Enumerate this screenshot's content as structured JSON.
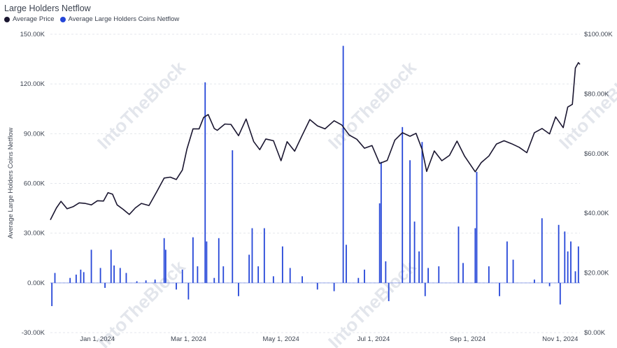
{
  "chart_data": {
    "type": "bar",
    "title": "Large Holders Netflow",
    "ylabel": "Average Large Holders Coins Netflow",
    "ylim": [
      -30000,
      150000
    ],
    "y2lim": [
      0,
      100000
    ],
    "yticks": [
      150000,
      120000,
      90000,
      60000,
      30000,
      0,
      -30000
    ],
    "yticks_labels": [
      "150.00K",
      "120.00K",
      "90.00K",
      "60.00K",
      "30.00K",
      "0.00K",
      "-30.00K"
    ],
    "y2ticks": [
      100000,
      80000,
      60000,
      40000,
      20000,
      0
    ],
    "y2ticks_labels": [
      "$100.00K",
      "$80.00K",
      "$60.00K",
      "$40.00K",
      "$20.00K",
      "$0.00K"
    ],
    "x_domain": [
      "2023-12-01",
      "2024-11-14"
    ],
    "xticks": [
      {
        "date": "2024-01-01",
        "label": "Jan 1, 2024"
      },
      {
        "date": "2024-03-01",
        "label": "Mar 1, 2024"
      },
      {
        "date": "2024-05-01",
        "label": "May 1, 2024"
      },
      {
        "date": "2024-07-01",
        "label": "Jul 1, 2024"
      },
      {
        "date": "2024-09-01",
        "label": "Sep 1, 2024"
      },
      {
        "date": "2024-11-01",
        "label": "Nov 1, 2024"
      }
    ],
    "grid": true,
    "legend_position": "top-left",
    "watermark": "IntoTheBlock",
    "series": [
      {
        "name": "Average Price",
        "type": "line",
        "axis": "right",
        "color": "#1a1630",
        "points": [
          [
            "2023-12-01",
            37800
          ],
          [
            "2023-12-05",
            41800
          ],
          [
            "2023-12-08",
            44000
          ],
          [
            "2023-12-12",
            41500
          ],
          [
            "2023-12-16",
            42200
          ],
          [
            "2023-12-20",
            43500
          ],
          [
            "2023-12-24",
            43300
          ],
          [
            "2023-12-28",
            42800
          ],
          [
            "2024-01-01",
            44200
          ],
          [
            "2024-01-05",
            44100
          ],
          [
            "2024-01-08",
            46900
          ],
          [
            "2024-01-11",
            46400
          ],
          [
            "2024-01-14",
            42800
          ],
          [
            "2024-01-18",
            41300
          ],
          [
            "2024-01-22",
            39600
          ],
          [
            "2024-01-26",
            41800
          ],
          [
            "2024-01-30",
            43300
          ],
          [
            "2024-02-04",
            42600
          ],
          [
            "2024-02-09",
            47100
          ],
          [
            "2024-02-14",
            51800
          ],
          [
            "2024-02-18",
            52100
          ],
          [
            "2024-02-22",
            51300
          ],
          [
            "2024-02-26",
            54500
          ],
          [
            "2024-02-29",
            61500
          ],
          [
            "2024-03-04",
            68300
          ],
          [
            "2024-03-08",
            68300
          ],
          [
            "2024-03-11",
            72100
          ],
          [
            "2024-03-14",
            73100
          ],
          [
            "2024-03-18",
            68400
          ],
          [
            "2024-03-20",
            67800
          ],
          [
            "2024-03-25",
            69900
          ],
          [
            "2024-03-29",
            69800
          ],
          [
            "2024-04-03",
            66000
          ],
          [
            "2024-04-08",
            71600
          ],
          [
            "2024-04-13",
            64000
          ],
          [
            "2024-04-17",
            61300
          ],
          [
            "2024-04-21",
            64900
          ],
          [
            "2024-04-26",
            64300
          ],
          [
            "2024-05-01",
            57600
          ],
          [
            "2024-05-05",
            64000
          ],
          [
            "2024-05-10",
            60800
          ],
          [
            "2024-05-15",
            66200
          ],
          [
            "2024-05-20",
            71400
          ],
          [
            "2024-05-25",
            69300
          ],
          [
            "2024-05-30",
            68300
          ],
          [
            "2024-06-05",
            71000
          ],
          [
            "2024-06-10",
            69600
          ],
          [
            "2024-06-15",
            66200
          ],
          [
            "2024-06-20",
            64800
          ],
          [
            "2024-06-25",
            61800
          ],
          [
            "2024-06-30",
            62700
          ],
          [
            "2024-07-05",
            56700
          ],
          [
            "2024-07-10",
            57700
          ],
          [
            "2024-07-15",
            64500
          ],
          [
            "2024-07-20",
            67000
          ],
          [
            "2024-07-25",
            65800
          ],
          [
            "2024-07-29",
            66800
          ],
          [
            "2024-08-02",
            61400
          ],
          [
            "2024-08-05",
            54000
          ],
          [
            "2024-08-10",
            60900
          ],
          [
            "2024-08-15",
            57600
          ],
          [
            "2024-08-20",
            59400
          ],
          [
            "2024-08-25",
            64200
          ],
          [
            "2024-08-30",
            59100
          ],
          [
            "2024-09-06",
            53900
          ],
          [
            "2024-09-10",
            57000
          ],
          [
            "2024-09-15",
            59200
          ],
          [
            "2024-09-20",
            63200
          ],
          [
            "2024-09-25",
            64300
          ],
          [
            "2024-09-30",
            63300
          ],
          [
            "2024-10-05",
            62100
          ],
          [
            "2024-10-10",
            60300
          ],
          [
            "2024-10-15",
            67000
          ],
          [
            "2024-10-20",
            68400
          ],
          [
            "2024-10-25",
            66600
          ],
          [
            "2024-10-29",
            72300
          ],
          [
            "2024-11-03",
            68700
          ],
          [
            "2024-11-06",
            75600
          ],
          [
            "2024-11-09",
            76500
          ],
          [
            "2024-11-11",
            88700
          ],
          [
            "2024-11-13",
            90500
          ],
          [
            "2024-11-14",
            89900
          ]
        ]
      },
      {
        "name": "Average Large Holders Coins Netflow",
        "type": "bar",
        "axis": "left",
        "color": "#2546d8",
        "points": [
          [
            "2023-12-02",
            -14000
          ],
          [
            "2023-12-04",
            6000
          ],
          [
            "2023-12-14",
            3000
          ],
          [
            "2023-12-18",
            5000
          ],
          [
            "2023-12-21",
            8000
          ],
          [
            "2023-12-23",
            6500
          ],
          [
            "2023-12-28",
            20000
          ],
          [
            "2024-01-03",
            9000
          ],
          [
            "2024-01-06",
            -3000
          ],
          [
            "2024-01-10",
            20000
          ],
          [
            "2024-01-12",
            10500
          ],
          [
            "2024-01-16",
            9000
          ],
          [
            "2024-01-20",
            6000
          ],
          [
            "2024-01-27",
            1000
          ],
          [
            "2024-02-02",
            1500
          ],
          [
            "2024-02-08",
            2000
          ],
          [
            "2024-02-14",
            27000
          ],
          [
            "2024-02-15",
            20000
          ],
          [
            "2024-02-22",
            -4000
          ],
          [
            "2024-02-26",
            8000
          ],
          [
            "2024-03-01",
            -10000
          ],
          [
            "2024-03-04",
            27500
          ],
          [
            "2024-03-07",
            10000
          ],
          [
            "2024-03-12",
            121000
          ],
          [
            "2024-03-13",
            25000
          ],
          [
            "2024-03-18",
            3000
          ],
          [
            "2024-03-21",
            27000
          ],
          [
            "2024-03-24",
            10000
          ],
          [
            "2024-03-30",
            80000
          ],
          [
            "2024-04-03",
            -8000
          ],
          [
            "2024-04-10",
            17000
          ],
          [
            "2024-04-12",
            33000
          ],
          [
            "2024-04-16",
            10000
          ],
          [
            "2024-04-20",
            33000
          ],
          [
            "2024-04-26",
            4000
          ],
          [
            "2024-05-02",
            22000
          ],
          [
            "2024-05-07",
            9000
          ],
          [
            "2024-05-15",
            4000
          ],
          [
            "2024-05-25",
            -4000
          ],
          [
            "2024-06-05",
            -5000
          ],
          [
            "2024-06-11",
            143000
          ],
          [
            "2024-06-13",
            23000
          ],
          [
            "2024-06-21",
            3000
          ],
          [
            "2024-06-25",
            8000
          ],
          [
            "2024-07-05",
            48000
          ],
          [
            "2024-07-06",
            73000
          ],
          [
            "2024-07-09",
            13000
          ],
          [
            "2024-07-11",
            -11000
          ],
          [
            "2024-07-20",
            94000
          ],
          [
            "2024-07-25",
            74000
          ],
          [
            "2024-07-28",
            37000
          ],
          [
            "2024-07-31",
            19000
          ],
          [
            "2024-08-02",
            85000
          ],
          [
            "2024-08-04",
            -8000
          ],
          [
            "2024-08-06",
            9000
          ],
          [
            "2024-08-13",
            10000
          ],
          [
            "2024-08-26",
            34000
          ],
          [
            "2024-08-29",
            12000
          ],
          [
            "2024-09-06",
            33000
          ],
          [
            "2024-09-07",
            67000
          ],
          [
            "2024-09-15",
            10000
          ],
          [
            "2024-09-22",
            -8000
          ],
          [
            "2024-09-27",
            25000
          ],
          [
            "2024-10-01",
            14000
          ],
          [
            "2024-10-15",
            2000
          ],
          [
            "2024-10-20",
            39000
          ],
          [
            "2024-10-25",
            -2000
          ],
          [
            "2024-10-31",
            35000
          ],
          [
            "2024-11-01",
            -13000
          ],
          [
            "2024-11-04",
            31000
          ],
          [
            "2024-11-06",
            19000
          ],
          [
            "2024-11-08",
            25000
          ],
          [
            "2024-11-11",
            7000
          ],
          [
            "2024-11-13",
            22000
          ]
        ]
      }
    ]
  }
}
